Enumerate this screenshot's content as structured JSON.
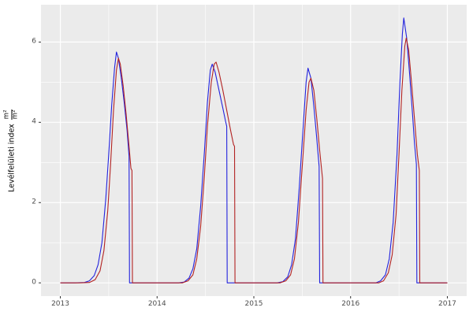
{
  "chart_data": {
    "type": "line",
    "title": "",
    "xlabel": "",
    "ylabel_text": "Levélfelületi index",
    "ylabel_frac_num": "m²",
    "ylabel_frac_den": "m²",
    "x_range": [
      2012.8,
      2017.2
    ],
    "y_range": [
      -0.33,
      6.93
    ],
    "x_ticks": [
      2013,
      2014,
      2015,
      2016,
      2017
    ],
    "y_ticks": [
      0,
      2,
      4,
      6
    ],
    "x_minor": [
      2013.5,
      2014.5,
      2015.5,
      2016.5
    ],
    "y_minor": [
      1,
      3,
      5
    ],
    "grid": true,
    "legend": "none",
    "colors": {
      "panel_background": "#ebebeb",
      "grid": "#ffffff",
      "tick_label": "#4d4d4d",
      "tick_mark": "#333333"
    },
    "series": [
      {
        "name": "series-blue",
        "color": "#2222dd",
        "points": [
          [
            2013.0,
            0
          ],
          [
            2013.15,
            0
          ],
          [
            2013.25,
            0.01
          ],
          [
            2013.3,
            0.05
          ],
          [
            2013.35,
            0.18
          ],
          [
            2013.39,
            0.45
          ],
          [
            2013.43,
            1.0
          ],
          [
            2013.47,
            2.1
          ],
          [
            2013.5,
            3.2
          ],
          [
            2013.53,
            4.4
          ],
          [
            2013.56,
            5.35
          ],
          [
            2013.58,
            5.75
          ],
          [
            2013.6,
            5.6
          ],
          [
            2013.63,
            5.1
          ],
          [
            2013.66,
            4.5
          ],
          [
            2013.69,
            3.8
          ],
          [
            2013.71,
            3.15
          ],
          [
            2013.715,
            0
          ],
          [
            2013.85,
            0
          ],
          [
            2014.1,
            0
          ],
          [
            2014.22,
            0
          ],
          [
            2014.28,
            0.02
          ],
          [
            2014.33,
            0.12
          ],
          [
            2014.37,
            0.35
          ],
          [
            2014.41,
            0.85
          ],
          [
            2014.45,
            1.9
          ],
          [
            2014.49,
            3.3
          ],
          [
            2014.52,
            4.5
          ],
          [
            2014.55,
            5.3
          ],
          [
            2014.57,
            5.45
          ],
          [
            2014.6,
            5.25
          ],
          [
            2014.64,
            4.8
          ],
          [
            2014.68,
            4.35
          ],
          [
            2014.71,
            4.0
          ],
          [
            2014.72,
            3.9
          ],
          [
            2014.725,
            0
          ],
          [
            2014.85,
            0
          ],
          [
            2015.1,
            0
          ],
          [
            2015.24,
            0
          ],
          [
            2015.3,
            0.03
          ],
          [
            2015.35,
            0.15
          ],
          [
            2015.39,
            0.45
          ],
          [
            2015.43,
            1.1
          ],
          [
            2015.47,
            2.4
          ],
          [
            2015.51,
            3.9
          ],
          [
            2015.54,
            5.0
          ],
          [
            2015.56,
            5.35
          ],
          [
            2015.59,
            5.1
          ],
          [
            2015.62,
            4.4
          ],
          [
            2015.65,
            3.6
          ],
          [
            2015.675,
            2.9
          ],
          [
            2015.68,
            0
          ],
          [
            2015.85,
            0
          ],
          [
            2016.1,
            0
          ],
          [
            2016.26,
            0
          ],
          [
            2016.31,
            0.05
          ],
          [
            2016.36,
            0.2
          ],
          [
            2016.4,
            0.6
          ],
          [
            2016.44,
            1.5
          ],
          [
            2016.48,
            3.2
          ],
          [
            2016.51,
            5.0
          ],
          [
            2016.535,
            6.2
          ],
          [
            2016.55,
            6.6
          ],
          [
            2016.58,
            6.1
          ],
          [
            2016.61,
            5.2
          ],
          [
            2016.64,
            4.2
          ],
          [
            2016.66,
            3.5
          ],
          [
            2016.68,
            2.95
          ],
          [
            2016.685,
            0
          ],
          [
            2016.85,
            0
          ],
          [
            2017.0,
            0
          ]
        ]
      },
      {
        "name": "series-red",
        "color": "#b22222",
        "points": [
          [
            2013.0,
            0
          ],
          [
            2013.2,
            0
          ],
          [
            2013.3,
            0.01
          ],
          [
            2013.36,
            0.08
          ],
          [
            2013.41,
            0.3
          ],
          [
            2013.45,
            0.8
          ],
          [
            2013.49,
            1.8
          ],
          [
            2013.52,
            3.0
          ],
          [
            2013.55,
            4.3
          ],
          [
            2013.58,
            5.3
          ],
          [
            2013.6,
            5.6
          ],
          [
            2013.62,
            5.45
          ],
          [
            2013.65,
            4.9
          ],
          [
            2013.68,
            4.2
          ],
          [
            2013.71,
            3.4
          ],
          [
            2013.73,
            2.85
          ],
          [
            2013.74,
            2.8
          ],
          [
            2013.745,
            0
          ],
          [
            2013.9,
            0
          ],
          [
            2014.1,
            0
          ],
          [
            2014.26,
            0
          ],
          [
            2014.32,
            0.05
          ],
          [
            2014.37,
            0.2
          ],
          [
            2014.41,
            0.6
          ],
          [
            2014.45,
            1.4
          ],
          [
            2014.49,
            2.7
          ],
          [
            2014.52,
            3.9
          ],
          [
            2014.56,
            5.0
          ],
          [
            2014.59,
            5.45
          ],
          [
            2014.61,
            5.5
          ],
          [
            2014.64,
            5.25
          ],
          [
            2014.68,
            4.8
          ],
          [
            2014.72,
            4.3
          ],
          [
            2014.76,
            3.8
          ],
          [
            2014.79,
            3.45
          ],
          [
            2014.8,
            3.4
          ],
          [
            2014.805,
            0
          ],
          [
            2014.95,
            0
          ],
          [
            2015.1,
            0
          ],
          [
            2015.27,
            0
          ],
          [
            2015.33,
            0.05
          ],
          [
            2015.38,
            0.2
          ],
          [
            2015.42,
            0.6
          ],
          [
            2015.46,
            1.5
          ],
          [
            2015.5,
            2.9
          ],
          [
            2015.54,
            4.3
          ],
          [
            2015.57,
            5.0
          ],
          [
            2015.59,
            5.1
          ],
          [
            2015.62,
            4.8
          ],
          [
            2015.65,
            4.1
          ],
          [
            2015.68,
            3.3
          ],
          [
            2015.71,
            2.6
          ],
          [
            2015.715,
            0
          ],
          [
            2015.9,
            0
          ],
          [
            2016.1,
            0
          ],
          [
            2016.29,
            0
          ],
          [
            2016.34,
            0.05
          ],
          [
            2016.39,
            0.25
          ],
          [
            2016.43,
            0.7
          ],
          [
            2016.47,
            1.7
          ],
          [
            2016.5,
            3.2
          ],
          [
            2016.53,
            4.8
          ],
          [
            2016.56,
            5.9
          ],
          [
            2016.575,
            6.1
          ],
          [
            2016.6,
            5.8
          ],
          [
            2016.63,
            5.0
          ],
          [
            2016.66,
            4.1
          ],
          [
            2016.69,
            3.2
          ],
          [
            2016.71,
            2.8
          ],
          [
            2016.715,
            0
          ],
          [
            2016.9,
            0
          ],
          [
            2017.0,
            0
          ]
        ]
      }
    ]
  }
}
